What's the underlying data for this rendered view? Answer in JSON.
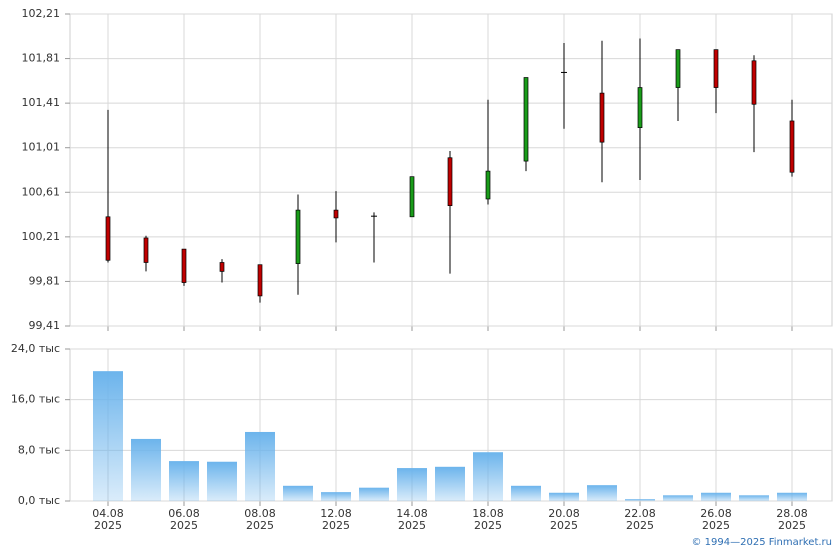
{
  "chart_data": [
    {
      "type": "candlestick",
      "open": [
        100.39,
        100.2,
        100.1,
        99.98,
        99.96,
        99.97,
        100.45,
        100.4,
        100.39,
        100.92,
        100.55,
        100.89,
        101.69,
        101.5,
        101.19,
        101.55,
        101.89,
        101.79,
        101.25
      ],
      "high": [
        101.35,
        100.22,
        100.1,
        100.01,
        99.96,
        100.59,
        100.62,
        100.43,
        100.75,
        100.98,
        101.44,
        101.64,
        101.95,
        101.97,
        101.99,
        101.89,
        101.89,
        101.84,
        101.44
      ],
      "low": [
        99.98,
        99.9,
        99.77,
        99.8,
        99.62,
        99.69,
        100.16,
        99.98,
        100.39,
        99.88,
        100.5,
        100.8,
        101.18,
        100.7,
        100.72,
        101.25,
        101.32,
        100.97,
        100.75
      ],
      "close": [
        100.0,
        99.98,
        99.8,
        99.9,
        99.68,
        100.45,
        100.38,
        100.4,
        100.75,
        100.49,
        100.8,
        101.64,
        101.69,
        101.06,
        101.55,
        101.89,
        101.55,
        101.4,
        100.79
      ],
      "up_color": "#1a9c1a",
      "down_color": "#c00000",
      "flat_color": "#000000",
      "ylim": [
        99.41,
        102.21
      ],
      "yticks": [
        {
          "value": 99.41,
          "label": "99,41"
        },
        {
          "value": 99.81,
          "label": "99,81"
        },
        {
          "value": 100.21,
          "label": "100,21"
        },
        {
          "value": 100.61,
          "label": "100,61"
        },
        {
          "value": 101.01,
          "label": "101,01"
        },
        {
          "value": 101.41,
          "label": "101,41"
        },
        {
          "value": 101.81,
          "label": "101,81"
        },
        {
          "value": 102.21,
          "label": "102,21"
        }
      ],
      "grid": true
    },
    {
      "type": "bar",
      "categories": [
        [
          "04.08",
          "2025"
        ],
        null,
        [
          "06.08",
          "2025"
        ],
        null,
        [
          "08.08",
          "2025"
        ],
        null,
        [
          "12.08",
          "2025"
        ],
        null,
        [
          "14.08",
          "2025"
        ],
        null,
        [
          "18.08",
          "2025"
        ],
        null,
        [
          "20.08",
          "2025"
        ],
        null,
        [
          "22.08",
          "2025"
        ],
        null,
        [
          "26.08",
          "2025"
        ],
        null,
        [
          "28.08",
          "2025"
        ]
      ],
      "values": [
        20.5,
        9.8,
        6.3,
        6.2,
        10.9,
        2.4,
        1.4,
        2.1,
        5.2,
        5.4,
        7.7,
        2.4,
        1.3,
        2.5,
        0.3,
        0.9,
        1.3,
        0.9,
        1.3
      ],
      "color": "#6cb4ec",
      "ylim": [
        0,
        24
      ],
      "yticks": [
        {
          "value": 0,
          "label": "0,0 тыс"
        },
        {
          "value": 8,
          "label": "8,0 тыс"
        },
        {
          "value": 16,
          "label": "16,0 тыс"
        },
        {
          "value": 24,
          "label": "24,0 тыс"
        }
      ],
      "grid": true
    }
  ],
  "footer": "© 1994—2025 Finmarket.ru"
}
